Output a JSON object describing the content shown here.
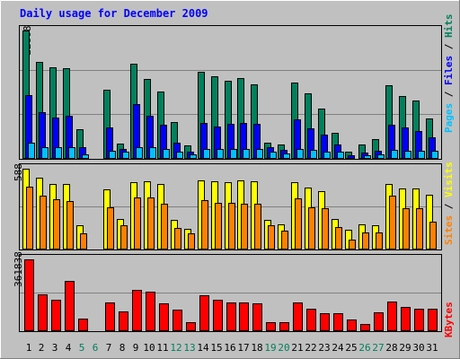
{
  "title": "Daily usage for December 2009",
  "colors": {
    "background": "#c0c0c0",
    "title": "#0000ff",
    "hits": "#00805c",
    "files": "#0000ff",
    "pages": "#00c0ff",
    "visits": "#ffff00",
    "sites": "#ff8000",
    "kbytes": "#ff0000",
    "weekday": "#000000",
    "weekend": "#00805c"
  },
  "panels": {
    "top": {
      "scale_max_label": "22808",
      "legend": [
        {
          "text": "Pages",
          "color": "#00c0ff"
        },
        {
          "text": " / ",
          "color": "#000000"
        },
        {
          "text": "Files",
          "color": "#0000ff"
        },
        {
          "text": " / ",
          "color": "#000000"
        },
        {
          "text": "Hits",
          "color": "#00805c"
        }
      ]
    },
    "middle": {
      "scale_max_label": "588",
      "legend": [
        {
          "text": "Sites",
          "color": "#ff8000"
        },
        {
          "text": " / ",
          "color": "#000000"
        },
        {
          "text": "Visits",
          "color": "#ffff00"
        }
      ]
    },
    "bottom": {
      "scale_max_label": "361838",
      "legend": [
        {
          "text": "KBytes",
          "color": "#ff0000"
        }
      ]
    }
  },
  "chart_data": {
    "type": "bar",
    "title": "Daily usage for December 2009",
    "categories": [
      "1",
      "2",
      "3",
      "4",
      "5",
      "6",
      "7",
      "8",
      "9",
      "10",
      "11",
      "12",
      "13",
      "14",
      "15",
      "16",
      "17",
      "18",
      "19",
      "20",
      "21",
      "22",
      "23",
      "24",
      "25",
      "26",
      "27",
      "28",
      "29",
      "30",
      "31"
    ],
    "weekend_days": [
      "5",
      "6",
      "12",
      "13",
      "19",
      "20",
      "26",
      "27"
    ],
    "panels": [
      {
        "name": "hits-files-pages",
        "ylim": [
          0,
          22808
        ],
        "series": [
          {
            "name": "Hits",
            "color": "#00805c",
            "values": [
              22808,
              17200,
              16300,
              16100,
              5300,
              0,
              12300,
              2700,
              16900,
              14200,
              12000,
              6500,
              2400,
              15400,
              14600,
              13800,
              14400,
              13200,
              2900,
              2600,
              13600,
              11700,
              8900,
              4600,
              1300,
              2600,
              3500,
              13000,
              11200,
              10400,
              7200
            ]
          },
          {
            "name": "Files",
            "color": "#0000ff",
            "values": [
              11300,
              8300,
              7400,
              7700,
              2000,
              0,
              5600,
              1800,
              9700,
              7600,
              6000,
              2900,
              1300,
              6400,
              5700,
              6300,
              6400,
              6200,
              2000,
              1600,
              7000,
              5400,
              4300,
              2500,
              600,
              1100,
              1500,
              6100,
              5600,
              4900,
              3900
            ]
          },
          {
            "name": "Pages",
            "color": "#00c0ff",
            "values": [
              2900,
              2000,
              2000,
              2000,
              800,
              0,
              1400,
              1300,
              2000,
              2000,
              1800,
              1200,
              800,
              1800,
              1700,
              1700,
              1700,
              1700,
              1200,
              900,
              1700,
              1600,
              1300,
              1200,
              200,
              700,
              800,
              1600,
              1500,
              1400,
              1500
            ]
          }
        ]
      },
      {
        "name": "visits-sites",
        "ylim": [
          0,
          588
        ],
        "series": [
          {
            "name": "Visits",
            "color": "#ffff00",
            "values": [
              588,
              525,
              478,
              478,
              178,
              0,
              440,
              222,
              493,
              495,
              479,
              217,
              150,
              505,
              499,
              489,
              505,
              498,
              218,
              180,
              490,
              450,
              423,
              222,
              145,
              185,
              178,
              478,
              445,
              445,
              400
            ]
          },
          {
            "name": "Sites",
            "color": "#ff8000",
            "values": [
              460,
              395,
              365,
              352,
              120,
              0,
              310,
              175,
              380,
              380,
              330,
              155,
              120,
              360,
              340,
              340,
              330,
              335,
              175,
              140,
              370,
              310,
              300,
              165,
              70,
              125,
              125,
              395,
              300,
              300,
              200
            ]
          }
        ]
      },
      {
        "name": "kbytes",
        "ylim": [
          0,
          361838
        ],
        "series": [
          {
            "name": "KBytes",
            "color": "#ff0000",
            "values": [
              361838,
              185000,
              158000,
              253000,
              65000,
              0,
              145000,
              98000,
              206000,
              200000,
              140000,
              108000,
              46000,
              180000,
              159000,
              144000,
              144000,
              142000,
              44000,
              45000,
              144000,
              112000,
              90000,
              90000,
              58000,
              38000,
              97000,
              148000,
              120000,
              115000,
              115000
            ]
          }
        ]
      }
    ]
  }
}
